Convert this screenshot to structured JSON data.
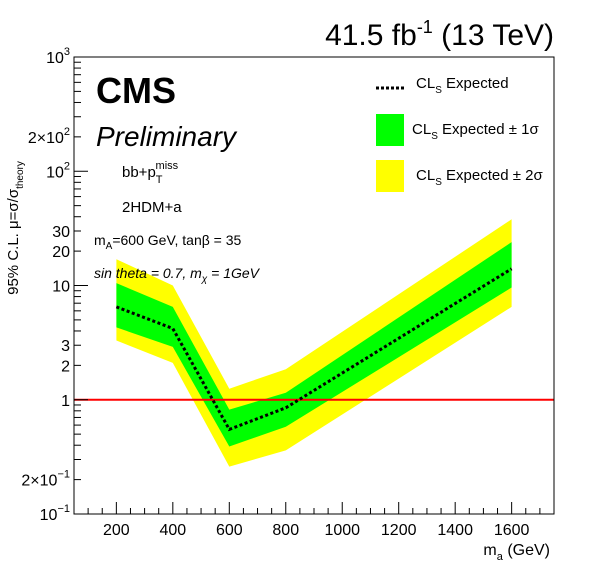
{
  "header": {
    "lumi": "41.5 fb",
    "lumi_exp": "-1",
    "energy": " (13 TeV)"
  },
  "labels": {
    "experiment": "CMS",
    "status": "Preliminary",
    "channel_base": "bb+p",
    "channel_sub": "T",
    "channel_sup": "miss",
    "model": "2HDM+a",
    "params_mA_pre": "m",
    "params_mA_sub": "A",
    "params_mA_post": "=600 GeV, tanβ = 35",
    "params_sin": "sin   theta = 0.7, m",
    "params_chi_sub": "χ",
    "params_chi_post": " = 1GeV"
  },
  "legend": {
    "expected": {
      "pre": "CL",
      "sub": "S",
      "post": "  Expected"
    },
    "band1": {
      "pre": "CL",
      "sub": "S",
      "post": "  Expected ± 1σ"
    },
    "band2": {
      "pre": "CL",
      "sub": "S",
      "post": "  Expected ± 2σ"
    }
  },
  "axes": {
    "xlabel_base": "m",
    "xlabel_sub": "a",
    "xlabel_unit": " (GeV)",
    "ylabel_text": "95% C.L.  μ=σ/σ",
    "ylabel_sub": "theory",
    "xticks": [
      "200",
      "400",
      "600",
      "800",
      "1000",
      "1200",
      "1400",
      "1600"
    ],
    "yticks": [
      {
        "value": 0.1,
        "base": "10",
        "exp": "−1"
      },
      {
        "value": 0.2,
        "base": "2×10",
        "exp": "−1"
      },
      {
        "value": 1,
        "base": "1",
        "exp": ""
      },
      {
        "value": 2,
        "base": "2",
        "exp": ""
      },
      {
        "value": 3,
        "base": "3",
        "exp": ""
      },
      {
        "value": 10,
        "base": "10",
        "exp": ""
      },
      {
        "value": 20,
        "base": "20",
        "exp": ""
      },
      {
        "value": 30,
        "base": "30",
        "exp": ""
      },
      {
        "value": 100,
        "base": "10",
        "exp": "2"
      },
      {
        "value": 200,
        "base": "2×10",
        "exp": "2"
      },
      {
        "value": 1000,
        "base": "10",
        "exp": "3"
      }
    ]
  },
  "colors": {
    "band1": "#00ff00",
    "band2": "#ffff00",
    "expected": "#000000",
    "reference": "#ff0000"
  },
  "chart_data": {
    "type": "line",
    "x": [
      200,
      400,
      600,
      800,
      1600
    ],
    "series": [
      {
        "name": "CL_S Expected",
        "values": [
          6.5,
          4.2,
          0.55,
          0.85,
          14
        ]
      }
    ],
    "band_1sigma": {
      "low": [
        4.3,
        2.9,
        0.39,
        0.58,
        9.6
      ],
      "high": [
        10.5,
        6.5,
        0.82,
        1.15,
        24
      ]
    },
    "band_2sigma": {
      "low": [
        3.3,
        2.1,
        0.26,
        0.36,
        6.5
      ],
      "high": [
        17,
        10,
        1.25,
        1.85,
        38
      ]
    },
    "reference_line": 1,
    "xlim": [
      50,
      1750
    ],
    "ylim": [
      0.1,
      1000
    ],
    "yscale": "log",
    "xlabel": "m_a (GeV)",
    "ylabel": "95% C.L. μ=σ/σ_theory"
  }
}
